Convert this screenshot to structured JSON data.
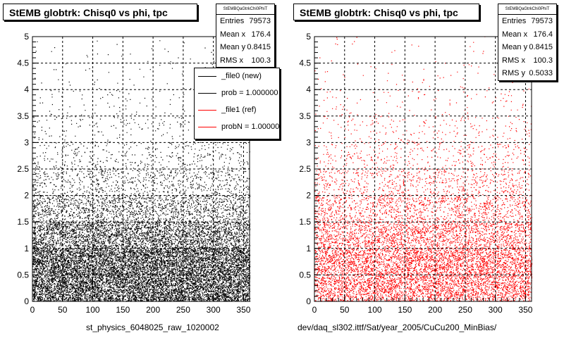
{
  "colors": {
    "new": "#000000",
    "ref": "#ff0000",
    "grid": "#000000"
  },
  "panels": [
    {
      "title": "StEMB globtrk: Chisq0 vs phi, tpc",
      "xlabel": "st_physics_6048025_raw_1020002",
      "stats": {
        "name": "StEMBQaGtrkChi0PhiT",
        "rows": [
          {
            "label": "Entries",
            "value": "79573"
          },
          {
            "label": "Mean x",
            "value": "176.4"
          },
          {
            "label": "Mean y",
            "value": "0.8415"
          },
          {
            "label": "RMS x",
            "value": "100.3"
          }
        ]
      },
      "legend": [
        {
          "label": "_file0 (new)",
          "color": "#000000"
        },
        {
          "label": "prob = 1.000000",
          "color": "#000000"
        },
        {
          "label": "_file1 (ref)",
          "color": "#ff0000"
        },
        {
          "label": "probN = 1.000000",
          "color": "#ff0000"
        }
      ]
    },
    {
      "title": "StEMB globtrk: Chisq0 vs phi, tpc",
      "xlabel": "dev/daq_sl302.ittf/Sat/year_2005/CuCu200_MinBias/",
      "stats": {
        "name": "StEMBQaGtrkChi0PhiT",
        "rows": [
          {
            "label": "Entries",
            "value": "79573"
          },
          {
            "label": "Mean x",
            "value": "176.4"
          },
          {
            "label": "Mean y",
            "value": "0.8415"
          },
          {
            "label": "RMS x",
            "value": "100.3"
          },
          {
            "label": "RMS y",
            "value": "0.5033"
          }
        ]
      }
    }
  ],
  "chart_data": [
    {
      "type": "scatter",
      "title": "StEMB globtrk: Chisq0 vs phi, tpc",
      "xlabel": "st_physics_6048025_raw_1020002",
      "ylabel": "",
      "xlim": [
        0,
        360
      ],
      "ylim": [
        0,
        5
      ],
      "x_ticks": [
        0,
        50,
        100,
        150,
        200,
        250,
        300,
        350
      ],
      "y_ticks": [
        0,
        0.5,
        1,
        1.5,
        2,
        2.5,
        3,
        3.5,
        4,
        4.5,
        5
      ],
      "grid": true,
      "legend_position": "top-right",
      "series": [
        {
          "name": "_file0 (new)",
          "color": "#000000",
          "entries": 79573,
          "mean_x": 176.4,
          "mean_y": 0.8415,
          "rms_x": 100.3
        },
        {
          "name": "_file1 (ref)",
          "color": "#ff0000"
        }
      ],
      "density_profile_y": [
        {
          "y": 0.25,
          "relative_density": 1.0
        },
        {
          "y": 0.75,
          "relative_density": 1.0
        },
        {
          "y": 1.25,
          "relative_density": 0.62
        },
        {
          "y": 1.75,
          "relative_density": 0.3
        },
        {
          "y": 2.25,
          "relative_density": 0.14
        },
        {
          "y": 2.75,
          "relative_density": 0.07
        },
        {
          "y": 3.25,
          "relative_density": 0.035
        },
        {
          "y": 3.75,
          "relative_density": 0.018
        },
        {
          "y": 4.25,
          "relative_density": 0.009
        },
        {
          "y": 4.75,
          "relative_density": 0.005
        }
      ]
    },
    {
      "type": "scatter",
      "title": "StEMB globtrk: Chisq0 vs phi, tpc",
      "xlabel": "dev/daq_sl302.ittf/Sat/year_2005/CuCu200_MinBias/",
      "ylabel": "",
      "xlim": [
        0,
        360
      ],
      "ylim": [
        0,
        5
      ],
      "x_ticks": [
        0,
        50,
        100,
        150,
        200,
        250,
        300,
        350
      ],
      "y_ticks": [
        0,
        0.5,
        1,
        1.5,
        2,
        2.5,
        3,
        3.5,
        4,
        4.5,
        5
      ],
      "grid": true,
      "series": [
        {
          "name": "",
          "color": "#ff0000",
          "entries": 79573,
          "mean_x": 176.4,
          "mean_y": 0.8415,
          "rms_x": 100.3,
          "rms_y": 0.5033
        }
      ],
      "density_profile_y": [
        {
          "y": 0.25,
          "relative_density": 0.72
        },
        {
          "y": 0.75,
          "relative_density": 0.72
        },
        {
          "y": 1.25,
          "relative_density": 0.5
        },
        {
          "y": 1.75,
          "relative_density": 0.3
        },
        {
          "y": 2.25,
          "relative_density": 0.17
        },
        {
          "y": 2.75,
          "relative_density": 0.09
        },
        {
          "y": 3.25,
          "relative_density": 0.05
        },
        {
          "y": 3.75,
          "relative_density": 0.025
        },
        {
          "y": 4.25,
          "relative_density": 0.012
        },
        {
          "y": 4.75,
          "relative_density": 0.006
        }
      ]
    }
  ]
}
